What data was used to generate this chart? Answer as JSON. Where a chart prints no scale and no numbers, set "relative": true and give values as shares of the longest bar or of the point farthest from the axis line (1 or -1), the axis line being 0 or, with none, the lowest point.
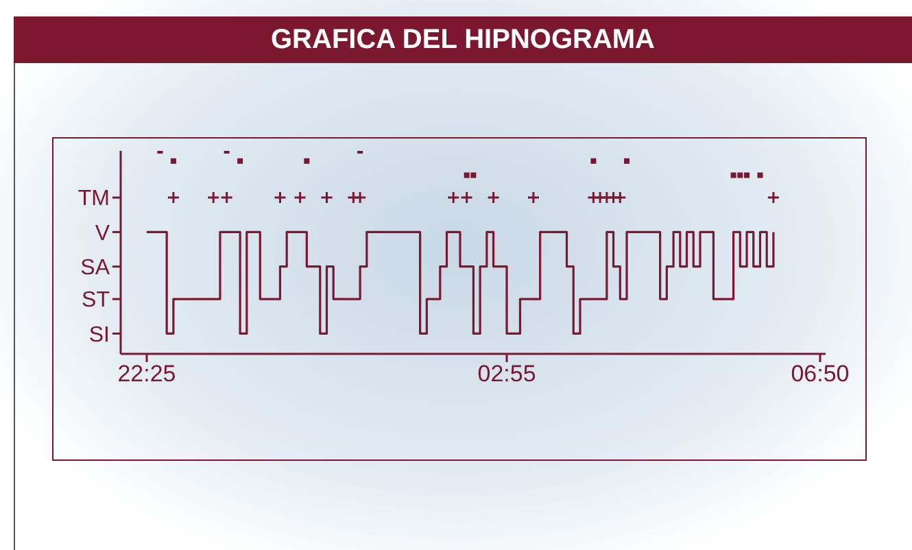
{
  "chart_data": {
    "type": "step",
    "title": "GRAFICA DEL HIPNOGRAMA",
    "relative": true,
    "categories": [
      "22:25",
      null,
      null,
      null,
      null,
      null,
      null,
      null,
      null,
      null,
      null,
      null,
      null,
      null,
      null,
      null,
      null,
      null,
      null,
      null,
      null,
      null,
      null,
      null,
      null,
      null,
      null,
      null,
      null,
      null,
      null,
      null,
      null,
      null,
      null,
      null,
      null,
      null,
      null,
      null,
      null,
      null,
      null,
      null,
      null,
      null,
      null,
      null,
      null,
      null,
      null,
      null,
      null,
      null,
      "02:55",
      null,
      null,
      null,
      null,
      null,
      null,
      null,
      null,
      null,
      null,
      null,
      null,
      null,
      null,
      null,
      null,
      null,
      null,
      null,
      null,
      null,
      null,
      null,
      null,
      null,
      null,
      null,
      null,
      null,
      null,
      null,
      null,
      null,
      null,
      null,
      null,
      null,
      null,
      null,
      null,
      null,
      null,
      null,
      null,
      null,
      null,
      "06:50"
    ],
    "annotations": [
      "SI",
      "ST",
      "SA",
      "V",
      "TM"
    ],
    "series": [
      {
        "color": "#7b1830",
        "values": [
          0.6,
          0.6,
          0.6,
          0.1,
          0.27,
          0.27,
          0.27,
          0.27,
          0.27,
          0.27,
          0.27,
          0.6,
          0.6,
          0.6,
          0.1,
          0.6,
          0.6,
          0.27,
          0.27,
          0.27,
          0.43,
          0.6,
          0.6,
          0.6,
          0.43,
          0.43,
          0.1,
          0.43,
          0.27,
          0.27,
          0.27,
          0.27,
          0.43,
          0.6,
          0.6,
          0.6,
          0.6,
          0.6,
          0.6,
          0.6,
          0.6,
          0.1,
          0.27,
          0.27,
          0.43,
          0.6,
          0.6,
          0.43,
          0.43,
          0.1,
          0.43,
          0.6,
          0.43,
          0.43,
          0.1,
          0.1,
          0.27,
          0.27,
          0.27,
          0.6,
          0.6,
          0.6,
          0.6,
          0.43,
          0.1,
          0.27,
          0.27,
          0.27,
          0.27,
          0.6,
          0.43,
          0.27,
          0.6,
          0.6,
          0.6,
          0.6,
          0.6,
          0.27,
          0.43,
          0.6,
          0.43,
          0.6,
          0.43,
          0.6,
          0.6,
          0.27,
          0.27,
          0.27,
          0.6,
          0.43,
          0.6,
          0.43,
          0.6,
          0.43,
          0.6,
          null,
          null,
          null,
          null,
          null,
          null,
          null
        ]
      },
      {
        "type": "scatter",
        "color": "#7b1830",
        "marker": "cross",
        "values": [
          null,
          null,
          null,
          null,
          0.77,
          null,
          null,
          null,
          null,
          null,
          0.77,
          null,
          0.77,
          null,
          null,
          null,
          null,
          null,
          null,
          null,
          0.77,
          null,
          null,
          0.77,
          null,
          null,
          null,
          0.77,
          null,
          null,
          null,
          0.77,
          0.77,
          null,
          null,
          null,
          null,
          null,
          null,
          null,
          null,
          null,
          null,
          null,
          null,
          null,
          0.77,
          null,
          0.77,
          null,
          null,
          null,
          0.77,
          null,
          null,
          null,
          null,
          null,
          0.77,
          null,
          null,
          null,
          null,
          null,
          null,
          null,
          null,
          0.77,
          0.77,
          0.77,
          0.77,
          0.77,
          null,
          null,
          null,
          null,
          null,
          null,
          null,
          null,
          null,
          null,
          null,
          null,
          null,
          null,
          null,
          null,
          null,
          null,
          null,
          null,
          null,
          null,
          0.77,
          null,
          null,
          null,
          null,
          null,
          null,
          null
        ]
      },
      {
        "type": "scatter",
        "color": "#7b1830",
        "marker": "square",
        "values": [
          null,
          null,
          1,
          null,
          null,
          null,
          null,
          null,
          null,
          null,
          null,
          null,
          1,
          null,
          null,
          null,
          null,
          null,
          null,
          null,
          null,
          null,
          null,
          null,
          null,
          null,
          null,
          null,
          null,
          null,
          null,
          null,
          1,
          null,
          null,
          null,
          null,
          null,
          null,
          null,
          null,
          null,
          null,
          null,
          null,
          null,
          null,
          null,
          null,
          null,
          null,
          null,
          null,
          null,
          null,
          null,
          null,
          null,
          null,
          null,
          null,
          null,
          null,
          null,
          null,
          null,
          null,
          null,
          null,
          null,
          null,
          null,
          null,
          null,
          null,
          null,
          null,
          null,
          null,
          null,
          null,
          null,
          null,
          null,
          null,
          null,
          null,
          null,
          null,
          null,
          null,
          null,
          null,
          null,
          null,
          null,
          null,
          null,
          null,
          null,
          null,
          null
        ]
      },
      {
        "type": "scatter",
        "color": "#7b1830",
        "marker": "square",
        "values": [
          null,
          null,
          null,
          null,
          0.95,
          null,
          null,
          null,
          null,
          null,
          null,
          null,
          null,
          null,
          0.95,
          null,
          null,
          null,
          null,
          null,
          null,
          null,
          null,
          null,
          0.95,
          null,
          null,
          null,
          null,
          null,
          null,
          null,
          null,
          null,
          null,
          null,
          null,
          null,
          null,
          null,
          null,
          null,
          null,
          null,
          null,
          null,
          null,
          null,
          null,
          null,
          null,
          null,
          null,
          null,
          null,
          null,
          null,
          null,
          null,
          null,
          null,
          null,
          null,
          null,
          null,
          null,
          null,
          0.95,
          null,
          null,
          null,
          null,
          0.95,
          null,
          null,
          null,
          null,
          null,
          null,
          null,
          null,
          null,
          null,
          null,
          null,
          null,
          null,
          null,
          null,
          null,
          null,
          null,
          null,
          null,
          null,
          null,
          null,
          null,
          null,
          null,
          null,
          null
        ]
      },
      {
        "type": "scatter",
        "color": "#7b1830",
        "marker": "square",
        "values": [
          null,
          null,
          null,
          null,
          null,
          null,
          null,
          null,
          null,
          null,
          null,
          null,
          null,
          null,
          null,
          null,
          null,
          null,
          null,
          null,
          null,
          null,
          null,
          null,
          null,
          null,
          null,
          null,
          null,
          null,
          null,
          null,
          null,
          null,
          null,
          null,
          null,
          null,
          null,
          null,
          null,
          null,
          null,
          null,
          null,
          null,
          null,
          null,
          0.88,
          0.88,
          null,
          null,
          null,
          null,
          null,
          null,
          null,
          null,
          null,
          null,
          null,
          null,
          null,
          null,
          null,
          null,
          null,
          null,
          null,
          null,
          null,
          null,
          null,
          null,
          null,
          null,
          null,
          null,
          null,
          null,
          null,
          null,
          null,
          null,
          null,
          null,
          null,
          null,
          0.88,
          0.88,
          0.88,
          null,
          0.88,
          null,
          null,
          null,
          null,
          null,
          null,
          null,
          null,
          null
        ]
      }
    ]
  }
}
